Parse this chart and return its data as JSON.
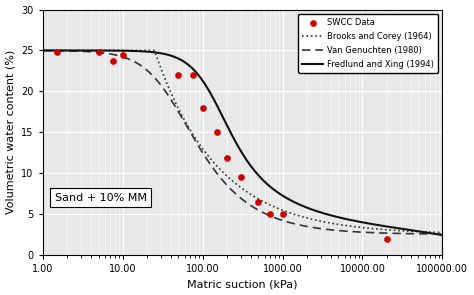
{
  "swcc_x": [
    1.5,
    5.0,
    7.5,
    10.0,
    50.0,
    75.0,
    100.0,
    150.0,
    200.0,
    300.0,
    500.0,
    700.0,
    1000.0,
    20000.0
  ],
  "swcc_y": [
    24.8,
    24.8,
    23.7,
    24.5,
    22.0,
    22.0,
    18.0,
    15.0,
    11.8,
    9.5,
    6.5,
    5.0,
    5.0,
    2.0
  ],
  "xlim": [
    1.0,
    100000.0
  ],
  "ylim": [
    0,
    30
  ],
  "yticks": [
    0,
    5,
    10,
    15,
    20,
    25,
    30
  ],
  "xlabel": "Matric suction (kPa)",
  "ylabel": "Volumetric water content (%)",
  "annotation": "Sand + 10% MM",
  "legend_labels": [
    "SWCC Data",
    "Brooks and Corey (1964)",
    "Van Genuchten (1980)",
    "Fredlund and Xing (1994)"
  ],
  "data_color": "#cc0000",
  "bc_color": "#333333",
  "vg_color": "#333333",
  "fx_color": "#111111",
  "background_color": "#e8e8e8",
  "axis_fontsize": 8,
  "tick_fontsize": 7,
  "vg_theta_r": 0.025,
  "vg_theta_s": 0.25,
  "vg_alpha": 0.025,
  "vg_n": 1.8,
  "bc_theta_r": 0.025,
  "bc_theta_s": 0.25,
  "bc_psi_b": 25.0,
  "bc_lambda": 0.55,
  "fx_theta_s": 0.25,
  "fx_a": 120.0,
  "fx_n": 2.2,
  "fx_m": 0.8,
  "fx_hr": 500000.0
}
